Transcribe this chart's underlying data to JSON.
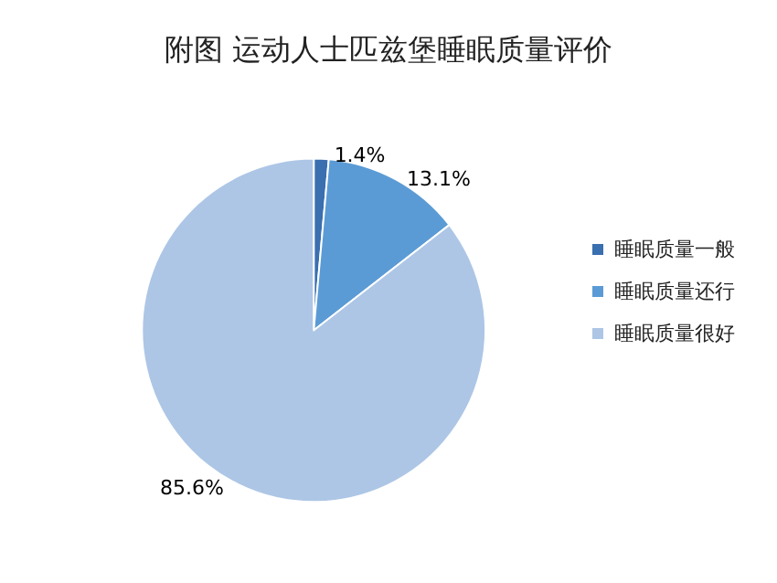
{
  "chart_data": {
    "type": "pie",
    "title": "附图 运动人士匹兹堡睡眠质量评价",
    "categories": [
      "睡眠质量一般",
      "睡眠质量还行",
      "睡眠质量很好"
    ],
    "values": [
      1.4,
      13.1,
      85.6
    ],
    "colors": [
      "#3a6fb0",
      "#5b9bd5",
      "#adc6e6"
    ],
    "value_labels": [
      "1.4%",
      "13.1%",
      "85.6%"
    ],
    "legend": "right"
  }
}
